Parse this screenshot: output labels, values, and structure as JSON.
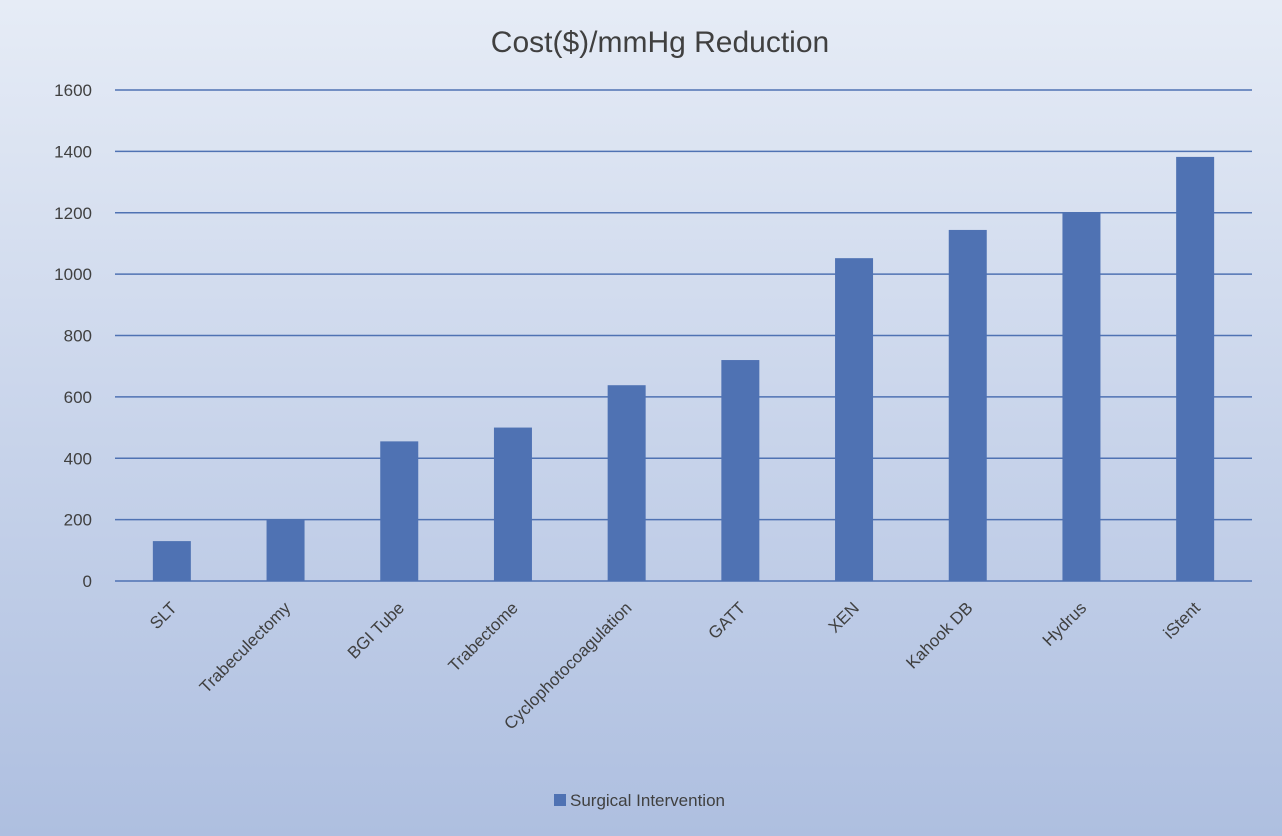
{
  "chart_data": {
    "type": "bar",
    "title": "Cost($)/mmHg Reduction",
    "xlabel": "",
    "ylabel": "",
    "categories": [
      "SLT",
      "Trabeculectomy",
      "BGI Tube",
      "Trabectome",
      "Cyclophotocoagulation",
      "GATT",
      "XEN",
      "Kahook DB",
      "Hydrus",
      "iStent"
    ],
    "series": [
      {
        "name": "Surgical Intervention",
        "color": "#4f72b3",
        "values": [
          130,
          200,
          455,
          500,
          638,
          720,
          1052,
          1144,
          1200,
          1382
        ]
      }
    ],
    "ylim": [
      0,
      1600
    ],
    "yticks": [
      0,
      200,
      400,
      600,
      800,
      1000,
      1200,
      1400,
      1600
    ],
    "grid": true,
    "gridColor": "#4f72b3",
    "legend": "bottom"
  }
}
